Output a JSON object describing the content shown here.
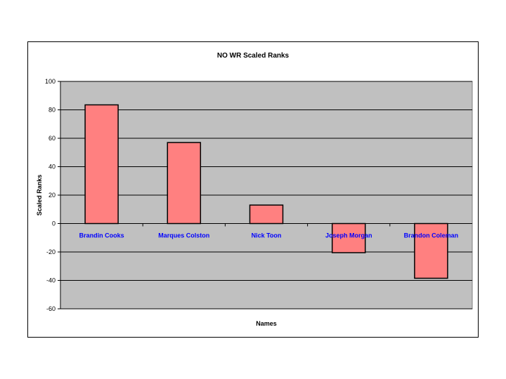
{
  "chart_data": {
    "type": "bar",
    "title": "NO WR  Scaled Ranks",
    "xlabel": "Names",
    "ylabel": "Scaled Ranks",
    "categories": [
      "Brandin Cooks",
      "Marques Colston",
      "Nick Toon",
      "Joseph Morgan",
      "Brandon Coleman"
    ],
    "values": [
      83.5,
      57,
      13,
      -20.5,
      -38.5
    ],
    "ylim": [
      -60,
      100
    ],
    "yticks": [
      100,
      80,
      60,
      40,
      20,
      0,
      -20,
      -40,
      -60
    ],
    "grid": true,
    "legend": "none",
    "colors": {
      "plot_background": "#c0c0c0",
      "bar_fill": "#ff8080",
      "bar_stroke": "#000000",
      "category_label": "#0000ff",
      "gridline": "#000000"
    }
  }
}
